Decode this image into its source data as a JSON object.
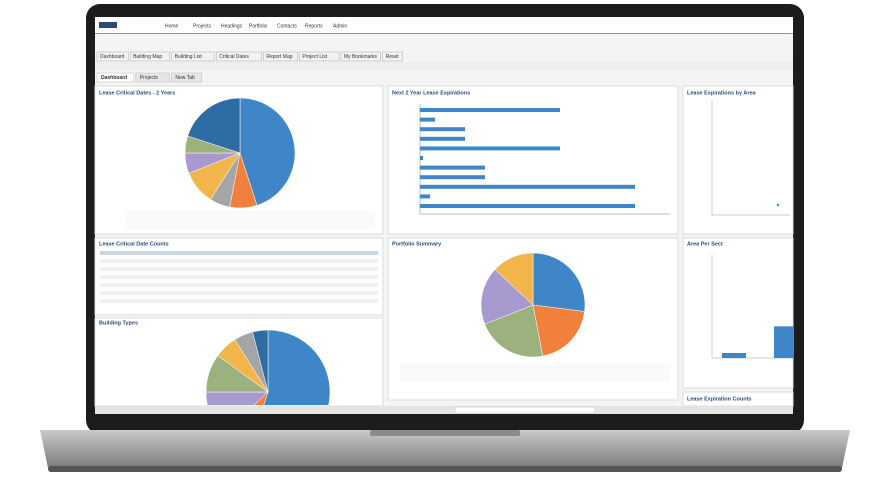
{
  "header": {
    "nav": [
      "Home",
      "Projects",
      "Headings",
      "Portfolio",
      "Contacts",
      "Reports",
      "Admin"
    ]
  },
  "toolbar": [
    "Dashboard",
    "Building Map",
    "Building List",
    "Critical Dates",
    "Report Map",
    "Project List",
    "My Bookmarks",
    "Reset"
  ],
  "tabs": [
    "Dashboard",
    "Projects",
    "New Tab"
  ],
  "panels": {
    "critical_dates": {
      "title": "Lease Critical Dates - 2 Years",
      "values": [
        45,
        8,
        6,
        10,
        6,
        5,
        20
      ],
      "colors": [
        "#3f86c8",
        "#f0803c",
        "#a5a5a5",
        "#f2b54a",
        "#a899cf",
        "#9bb27f",
        "#2e6da4"
      ]
    },
    "expirations": {
      "title": "Next 2 Year Lease Expirations",
      "values": [
        140,
        15,
        45,
        45,
        140,
        3,
        65,
        65,
        215,
        10,
        215
      ],
      "xlim": [
        0,
        250
      ],
      "color": "#3f86c8"
    },
    "area_expirations": {
      "title": "Lease Expirations by Area"
    },
    "date_counts": {
      "title": "Lease Critical Date Counts"
    },
    "portfolio": {
      "title": "Portfolio Summary",
      "values": [
        27,
        20,
        22,
        18,
        13
      ],
      "colors": [
        "#3f86c8",
        "#f0803c",
        "#9bb27f",
        "#a899cf",
        "#f2b54a"
      ]
    },
    "area_per_sect": {
      "title": "Area Per Sect",
      "values": [
        15,
        95
      ],
      "ylim": [
        0,
        300
      ],
      "color": "#3f86c8"
    },
    "building_types": {
      "title": "Building Types",
      "values": [
        55,
        8,
        12,
        10,
        6,
        5,
        4
      ],
      "colors": [
        "#3f86c8",
        "#f0803c",
        "#a899cf",
        "#9bb27f",
        "#f2b54a",
        "#a5a5a5",
        "#2e6da4"
      ]
    },
    "expiration_counts": {
      "title": "Lease Expiration Counts"
    }
  }
}
